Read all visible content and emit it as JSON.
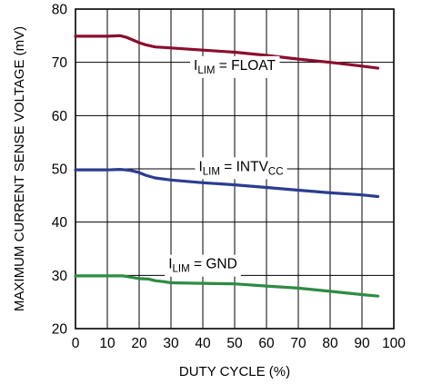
{
  "chart_data": {
    "type": "line",
    "title": "",
    "xlabel": "DUTY CYCLE (%)",
    "ylabel": "MAXIMUM CURRENT SENSE VOLTAGE (mV)",
    "xlim": [
      0,
      100
    ],
    "ylim": [
      20,
      80
    ],
    "xticks": [
      0,
      10,
      20,
      30,
      40,
      50,
      60,
      70,
      80,
      90,
      100
    ],
    "yticks": [
      20,
      30,
      40,
      50,
      60,
      70,
      80
    ],
    "grid": true,
    "legend": "none",
    "series": [
      {
        "name": "I_LIM = FLOAT",
        "label_main": "I",
        "label_sub": "LIM",
        "label_rest": " = FLOAT",
        "label_tail": "",
        "label_x": 50,
        "label_y": 68.6,
        "color": "#8b0d2d",
        "x": [
          0,
          5,
          10,
          14,
          16,
          18,
          20,
          22,
          25,
          30,
          40,
          50,
          60,
          70,
          80,
          90,
          95
        ],
        "y": [
          74.9,
          74.9,
          74.9,
          75.0,
          74.7,
          74.2,
          73.7,
          73.3,
          72.9,
          72.7,
          72.3,
          71.9,
          71.3,
          70.6,
          70.0,
          69.3,
          68.9
        ]
      },
      {
        "name": "I_LIM = INTV_CC",
        "label_main": "I",
        "label_sub": "LIM",
        "label_rest": " = INTV",
        "label_tail": "CC",
        "label_x": 52,
        "label_y": 49.6,
        "color": "#2b3c8f",
        "x": [
          0,
          5,
          10,
          14,
          16,
          18,
          20,
          22,
          25,
          30,
          40,
          50,
          60,
          70,
          80,
          90,
          95
        ],
        "y": [
          49.8,
          49.8,
          49.8,
          49.9,
          49.8,
          49.6,
          49.3,
          48.8,
          48.3,
          47.9,
          47.4,
          47.0,
          46.5,
          46.0,
          45.5,
          45.1,
          44.8
        ]
      },
      {
        "name": "I_LIM = GND",
        "label_main": "I",
        "label_sub": "LIM",
        "label_rest": " = GND",
        "label_tail": "",
        "label_x": 40,
        "label_y": 31.3,
        "color": "#2e8b44",
        "x": [
          0,
          5,
          10,
          15,
          18,
          20,
          23,
          25,
          28,
          30,
          40,
          50,
          60,
          70,
          80,
          90,
          95
        ],
        "y": [
          29.9,
          29.9,
          29.9,
          29.9,
          29.6,
          29.4,
          29.3,
          29.0,
          28.8,
          28.6,
          28.5,
          28.4,
          28.0,
          27.6,
          27.0,
          26.4,
          26.1
        ]
      }
    ]
  }
}
